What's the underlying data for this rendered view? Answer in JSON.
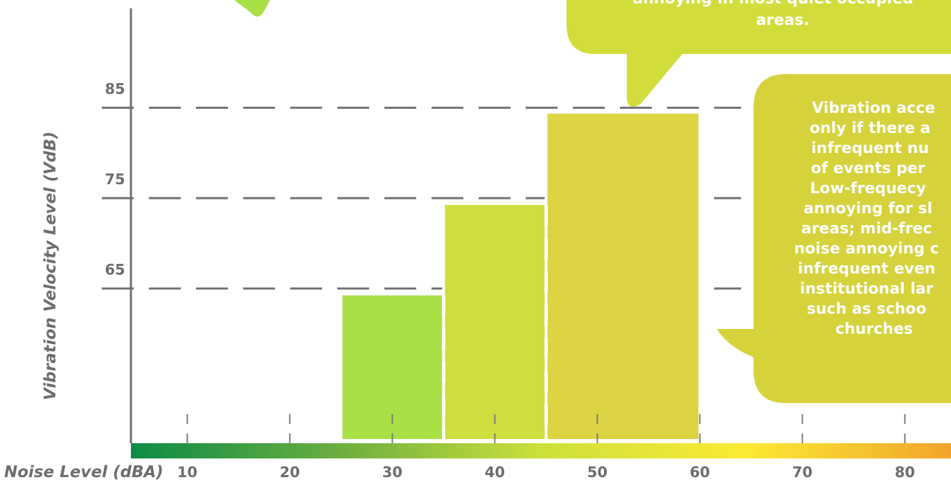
{
  "chart_data": {
    "type": "bar",
    "xlabel": "Noise Level (dBA)",
    "ylabel": "Vibration Velocity Level (VdB)",
    "x_ticks": [
      "10",
      "20",
      "30",
      "40",
      "50",
      "60",
      "70",
      "80"
    ],
    "x_tick_values": [
      10,
      20,
      30,
      40,
      50,
      60,
      70,
      80
    ],
    "y_ticks": [
      "65",
      "75",
      "85"
    ],
    "y_tick_values": [
      65,
      75,
      85
    ],
    "xlim": [
      4.5,
      84.5
    ],
    "ylim": [
      48.2,
      96
    ],
    "bars": [
      {
        "x0": 25,
        "x1": 39.8,
        "y_top": 64.4,
        "color": "#a8e045"
      },
      {
        "x0": 35,
        "x1": 50,
        "y_top": 74.4,
        "color": "#cfde3e"
      },
      {
        "x0": 45,
        "x1": 60,
        "y_top": 84.5,
        "color": "#dcd443"
      }
    ],
    "gradient_colors": [
      "#0b8c45",
      "#6aae3f",
      "#cde03a",
      "#fbea33",
      "#f2a42a"
    ],
    "callouts": [
      {
        "text_lines": [
          "annoying in most quiet occupied",
          "areas."
        ],
        "color": "#d2dd3c"
      },
      {
        "text_lines": [
          "Vibration acce",
          "only if there a",
          "infrequent nu",
          "of events per",
          "Low-frequecy",
          "annoying for sl",
          "areas; mid-frec",
          "noise annoying c",
          "infrequent even",
          "institutional lar",
          "such as schoo",
          "churches"
        ],
        "color": "#d5d23c"
      }
    ],
    "grid": false
  }
}
